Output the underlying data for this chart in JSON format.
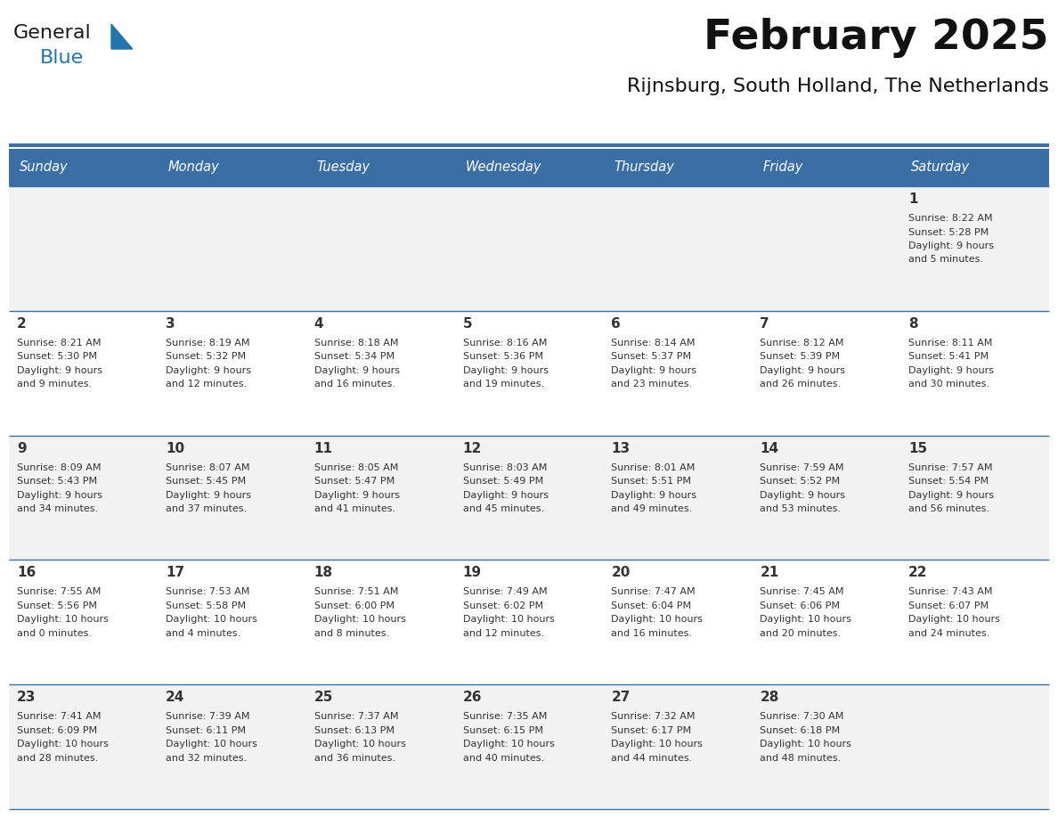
{
  "title": "February 2025",
  "subtitle": "Rijnsburg, South Holland, The Netherlands",
  "header_bg": "#3A6EA5",
  "header_text_color": "#FFFFFF",
  "cell_bg_even": "#F2F2F2",
  "cell_bg_white": "#FFFFFF",
  "cell_border_color": "#3A6EA5",
  "text_color": "#333333",
  "day_headers": [
    "Sunday",
    "Monday",
    "Tuesday",
    "Wednesday",
    "Thursday",
    "Friday",
    "Saturday"
  ],
  "days": [
    {
      "day": 1,
      "col": 6,
      "row": 0,
      "sunrise": "8:22 AM",
      "sunset": "5:28 PM",
      "daylight": "9 hours",
      "daylight2": "and 5 minutes."
    },
    {
      "day": 2,
      "col": 0,
      "row": 1,
      "sunrise": "8:21 AM",
      "sunset": "5:30 PM",
      "daylight": "9 hours",
      "daylight2": "and 9 minutes."
    },
    {
      "day": 3,
      "col": 1,
      "row": 1,
      "sunrise": "8:19 AM",
      "sunset": "5:32 PM",
      "daylight": "9 hours",
      "daylight2": "and 12 minutes."
    },
    {
      "day": 4,
      "col": 2,
      "row": 1,
      "sunrise": "8:18 AM",
      "sunset": "5:34 PM",
      "daylight": "9 hours",
      "daylight2": "and 16 minutes."
    },
    {
      "day": 5,
      "col": 3,
      "row": 1,
      "sunrise": "8:16 AM",
      "sunset": "5:36 PM",
      "daylight": "9 hours",
      "daylight2": "and 19 minutes."
    },
    {
      "day": 6,
      "col": 4,
      "row": 1,
      "sunrise": "8:14 AM",
      "sunset": "5:37 PM",
      "daylight": "9 hours",
      "daylight2": "and 23 minutes."
    },
    {
      "day": 7,
      "col": 5,
      "row": 1,
      "sunrise": "8:12 AM",
      "sunset": "5:39 PM",
      "daylight": "9 hours",
      "daylight2": "and 26 minutes."
    },
    {
      "day": 8,
      "col": 6,
      "row": 1,
      "sunrise": "8:11 AM",
      "sunset": "5:41 PM",
      "daylight": "9 hours",
      "daylight2": "and 30 minutes."
    },
    {
      "day": 9,
      "col": 0,
      "row": 2,
      "sunrise": "8:09 AM",
      "sunset": "5:43 PM",
      "daylight": "9 hours",
      "daylight2": "and 34 minutes."
    },
    {
      "day": 10,
      "col": 1,
      "row": 2,
      "sunrise": "8:07 AM",
      "sunset": "5:45 PM",
      "daylight": "9 hours",
      "daylight2": "and 37 minutes."
    },
    {
      "day": 11,
      "col": 2,
      "row": 2,
      "sunrise": "8:05 AM",
      "sunset": "5:47 PM",
      "daylight": "9 hours",
      "daylight2": "and 41 minutes."
    },
    {
      "day": 12,
      "col": 3,
      "row": 2,
      "sunrise": "8:03 AM",
      "sunset": "5:49 PM",
      "daylight": "9 hours",
      "daylight2": "and 45 minutes."
    },
    {
      "day": 13,
      "col": 4,
      "row": 2,
      "sunrise": "8:01 AM",
      "sunset": "5:51 PM",
      "daylight": "9 hours",
      "daylight2": "and 49 minutes."
    },
    {
      "day": 14,
      "col": 5,
      "row": 2,
      "sunrise": "7:59 AM",
      "sunset": "5:52 PM",
      "daylight": "9 hours",
      "daylight2": "and 53 minutes."
    },
    {
      "day": 15,
      "col": 6,
      "row": 2,
      "sunrise": "7:57 AM",
      "sunset": "5:54 PM",
      "daylight": "9 hours",
      "daylight2": "and 56 minutes."
    },
    {
      "day": 16,
      "col": 0,
      "row": 3,
      "sunrise": "7:55 AM",
      "sunset": "5:56 PM",
      "daylight": "10 hours",
      "daylight2": "and 0 minutes."
    },
    {
      "day": 17,
      "col": 1,
      "row": 3,
      "sunrise": "7:53 AM",
      "sunset": "5:58 PM",
      "daylight": "10 hours",
      "daylight2": "and 4 minutes."
    },
    {
      "day": 18,
      "col": 2,
      "row": 3,
      "sunrise": "7:51 AM",
      "sunset": "6:00 PM",
      "daylight": "10 hours",
      "daylight2": "and 8 minutes."
    },
    {
      "day": 19,
      "col": 3,
      "row": 3,
      "sunrise": "7:49 AM",
      "sunset": "6:02 PM",
      "daylight": "10 hours",
      "daylight2": "and 12 minutes."
    },
    {
      "day": 20,
      "col": 4,
      "row": 3,
      "sunrise": "7:47 AM",
      "sunset": "6:04 PM",
      "daylight": "10 hours",
      "daylight2": "and 16 minutes."
    },
    {
      "day": 21,
      "col": 5,
      "row": 3,
      "sunrise": "7:45 AM",
      "sunset": "6:06 PM",
      "daylight": "10 hours",
      "daylight2": "and 20 minutes."
    },
    {
      "day": 22,
      "col": 6,
      "row": 3,
      "sunrise": "7:43 AM",
      "sunset": "6:07 PM",
      "daylight": "10 hours",
      "daylight2": "and 24 minutes."
    },
    {
      "day": 23,
      "col": 0,
      "row": 4,
      "sunrise": "7:41 AM",
      "sunset": "6:09 PM",
      "daylight": "10 hours",
      "daylight2": "and 28 minutes."
    },
    {
      "day": 24,
      "col": 1,
      "row": 4,
      "sunrise": "7:39 AM",
      "sunset": "6:11 PM",
      "daylight": "10 hours",
      "daylight2": "and 32 minutes."
    },
    {
      "day": 25,
      "col": 2,
      "row": 4,
      "sunrise": "7:37 AM",
      "sunset": "6:13 PM",
      "daylight": "10 hours",
      "daylight2": "and 36 minutes."
    },
    {
      "day": 26,
      "col": 3,
      "row": 4,
      "sunrise": "7:35 AM",
      "sunset": "6:15 PM",
      "daylight": "10 hours",
      "daylight2": "and 40 minutes."
    },
    {
      "day": 27,
      "col": 4,
      "row": 4,
      "sunrise": "7:32 AM",
      "sunset": "6:17 PM",
      "daylight": "10 hours",
      "daylight2": "and 44 minutes."
    },
    {
      "day": 28,
      "col": 5,
      "row": 4,
      "sunrise": "7:30 AM",
      "sunset": "6:18 PM",
      "daylight": "10 hours",
      "daylight2": "and 48 minutes."
    }
  ],
  "n_rows": 5,
  "n_cols": 7
}
